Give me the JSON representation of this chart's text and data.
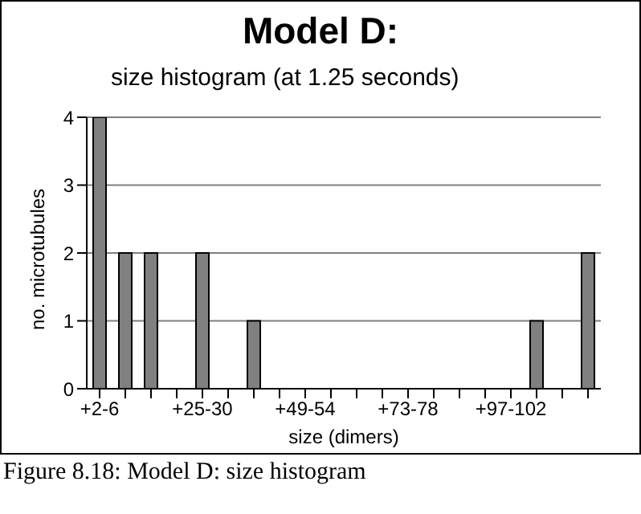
{
  "chart_data": {
    "type": "bar",
    "title": "Model D:",
    "subtitle": "size histogram (at 1.25 seconds)",
    "xlabel": "size (dimers)",
    "ylabel": "no. microtubules",
    "categories": [
      "+2-6",
      null,
      null,
      null,
      "+25-30",
      null,
      null,
      null,
      "+49-54",
      null,
      null,
      null,
      "+73-78",
      null,
      null,
      null,
      "+97-102",
      null,
      null,
      null
    ],
    "values": [
      4,
      2,
      2,
      0,
      2,
      0,
      1,
      0,
      0,
      0,
      0,
      0,
      0,
      0,
      0,
      0,
      0,
      1,
      0,
      2
    ],
    "color": "#808080",
    "ylim": [
      0,
      4
    ],
    "yticks": [
      0,
      1,
      2,
      3,
      4
    ],
    "grid": "y",
    "annotations": [
      "Figure 8.18: Model D: size histogram"
    ]
  }
}
